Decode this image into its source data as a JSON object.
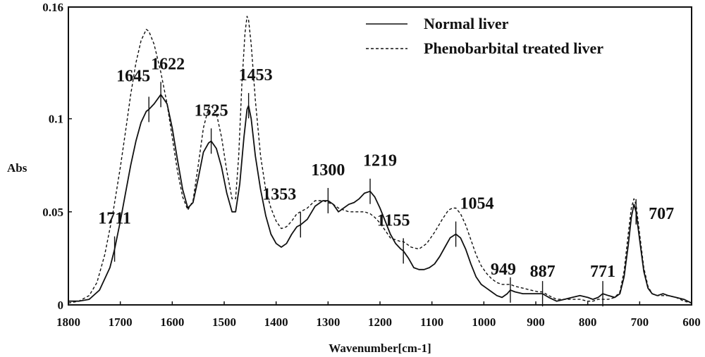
{
  "chart_data": {
    "type": "line",
    "title": "",
    "xlabel": "Wavenumber[cm-1]",
    "ylabel": "Abs",
    "xlim": [
      1800,
      600
    ],
    "ylim": [
      0,
      0.16
    ],
    "x_reversed": true,
    "x_ticks": [
      1800,
      1700,
      1600,
      1500,
      1400,
      1300,
      1200,
      1100,
      1000,
      900,
      800,
      700,
      600
    ],
    "x_tick_labels": [
      "1800",
      "1700",
      "1600",
      "1500",
      "1400",
      "1300",
      "1200",
      "1100",
      "1000",
      "900",
      "800",
      "700",
      "600"
    ],
    "y_ticks": [
      0,
      0.05,
      0.1,
      0.16
    ],
    "y_tick_labels": [
      "0",
      "0.05",
      "0.1",
      "0.16"
    ],
    "grid": false,
    "legend_position": "top-right",
    "series": [
      {
        "name": "Normal liver",
        "style": "solid",
        "color": "#111111",
        "points": [
          [
            1800,
            0.002
          ],
          [
            1780,
            0.002
          ],
          [
            1760,
            0.003
          ],
          [
            1740,
            0.008
          ],
          [
            1720,
            0.02
          ],
          [
            1711,
            0.03
          ],
          [
            1700,
            0.045
          ],
          [
            1690,
            0.06
          ],
          [
            1680,
            0.075
          ],
          [
            1670,
            0.088
          ],
          [
            1660,
            0.098
          ],
          [
            1650,
            0.104
          ],
          [
            1645,
            0.105
          ],
          [
            1635,
            0.108
          ],
          [
            1622,
            0.113
          ],
          [
            1610,
            0.108
          ],
          [
            1600,
            0.095
          ],
          [
            1590,
            0.078
          ],
          [
            1580,
            0.062
          ],
          [
            1570,
            0.052
          ],
          [
            1560,
            0.055
          ],
          [
            1550,
            0.068
          ],
          [
            1540,
            0.082
          ],
          [
            1530,
            0.087
          ],
          [
            1525,
            0.088
          ],
          [
            1515,
            0.084
          ],
          [
            1505,
            0.074
          ],
          [
            1495,
            0.06
          ],
          [
            1485,
            0.05
          ],
          [
            1478,
            0.05
          ],
          [
            1470,
            0.065
          ],
          [
            1462,
            0.09
          ],
          [
            1456,
            0.105
          ],
          [
            1453,
            0.107
          ],
          [
            1448,
            0.1
          ],
          [
            1440,
            0.08
          ],
          [
            1430,
            0.062
          ],
          [
            1420,
            0.048
          ],
          [
            1410,
            0.038
          ],
          [
            1400,
            0.033
          ],
          [
            1390,
            0.031
          ],
          [
            1380,
            0.033
          ],
          [
            1370,
            0.038
          ],
          [
            1360,
            0.042
          ],
          [
            1353,
            0.043
          ],
          [
            1340,
            0.046
          ],
          [
            1325,
            0.053
          ],
          [
            1310,
            0.056
          ],
          [
            1300,
            0.056
          ],
          [
            1290,
            0.054
          ],
          [
            1280,
            0.05
          ],
          [
            1270,
            0.052
          ],
          [
            1260,
            0.054
          ],
          [
            1250,
            0.055
          ],
          [
            1240,
            0.057
          ],
          [
            1230,
            0.06
          ],
          [
            1219,
            0.061
          ],
          [
            1210,
            0.058
          ],
          [
            1200,
            0.052
          ],
          [
            1190,
            0.045
          ],
          [
            1180,
            0.038
          ],
          [
            1170,
            0.033
          ],
          [
            1160,
            0.03
          ],
          [
            1155,
            0.029
          ],
          [
            1145,
            0.025
          ],
          [
            1135,
            0.02
          ],
          [
            1125,
            0.019
          ],
          [
            1115,
            0.019
          ],
          [
            1105,
            0.02
          ],
          [
            1095,
            0.022
          ],
          [
            1085,
            0.026
          ],
          [
            1075,
            0.031
          ],
          [
            1065,
            0.036
          ],
          [
            1054,
            0.038
          ],
          [
            1045,
            0.036
          ],
          [
            1035,
            0.03
          ],
          [
            1025,
            0.022
          ],
          [
            1015,
            0.015
          ],
          [
            1005,
            0.011
          ],
          [
            995,
            0.009
          ],
          [
            985,
            0.007
          ],
          [
            975,
            0.005
          ],
          [
            965,
            0.004
          ],
          [
            955,
            0.006
          ],
          [
            949,
            0.008
          ],
          [
            940,
            0.007
          ],
          [
            925,
            0.006
          ],
          [
            910,
            0.006
          ],
          [
            895,
            0.006
          ],
          [
            887,
            0.006
          ],
          [
            875,
            0.004
          ],
          [
            860,
            0.002
          ],
          [
            845,
            0.003
          ],
          [
            830,
            0.004
          ],
          [
            815,
            0.005
          ],
          [
            800,
            0.004
          ],
          [
            790,
            0.003
          ],
          [
            780,
            0.004
          ],
          [
            771,
            0.006
          ],
          [
            760,
            0.005
          ],
          [
            748,
            0.004
          ],
          [
            738,
            0.006
          ],
          [
            730,
            0.015
          ],
          [
            722,
            0.032
          ],
          [
            716,
            0.047
          ],
          [
            711,
            0.054
          ],
          [
            707,
            0.05
          ],
          [
            700,
            0.035
          ],
          [
            692,
            0.018
          ],
          [
            684,
            0.009
          ],
          [
            676,
            0.006
          ],
          [
            666,
            0.005
          ],
          [
            655,
            0.006
          ],
          [
            645,
            0.005
          ],
          [
            630,
            0.004
          ],
          [
            615,
            0.003
          ],
          [
            600,
            0.001
          ]
        ]
      },
      {
        "name": "Phenobarbital treated liver",
        "style": "dashed",
        "color": "#111111",
        "points": [
          [
            1800,
            0.001
          ],
          [
            1780,
            0.002
          ],
          [
            1760,
            0.005
          ],
          [
            1745,
            0.012
          ],
          [
            1730,
            0.027
          ],
          [
            1715,
            0.048
          ],
          [
            1700,
            0.074
          ],
          [
            1690,
            0.093
          ],
          [
            1680,
            0.113
          ],
          [
            1670,
            0.13
          ],
          [
            1660,
            0.142
          ],
          [
            1650,
            0.148
          ],
          [
            1645,
            0.147
          ],
          [
            1635,
            0.14
          ],
          [
            1622,
            0.125
          ],
          [
            1610,
            0.108
          ],
          [
            1600,
            0.09
          ],
          [
            1590,
            0.072
          ],
          [
            1580,
            0.058
          ],
          [
            1570,
            0.051
          ],
          [
            1560,
            0.056
          ],
          [
            1550,
            0.075
          ],
          [
            1540,
            0.095
          ],
          [
            1530,
            0.106
          ],
          [
            1525,
            0.107
          ],
          [
            1515,
            0.103
          ],
          [
            1505,
            0.09
          ],
          [
            1495,
            0.072
          ],
          [
            1485,
            0.057
          ],
          [
            1478,
            0.057
          ],
          [
            1472,
            0.08
          ],
          [
            1466,
            0.118
          ],
          [
            1460,
            0.146
          ],
          [
            1456,
            0.155
          ],
          [
            1453,
            0.153
          ],
          [
            1448,
            0.14
          ],
          [
            1440,
            0.11
          ],
          [
            1430,
            0.08
          ],
          [
            1420,
            0.062
          ],
          [
            1410,
            0.052
          ],
          [
            1400,
            0.045
          ],
          [
            1390,
            0.041
          ],
          [
            1380,
            0.042
          ],
          [
            1370,
            0.045
          ],
          [
            1360,
            0.049
          ],
          [
            1353,
            0.05
          ],
          [
            1340,
            0.052
          ],
          [
            1325,
            0.056
          ],
          [
            1310,
            0.056
          ],
          [
            1300,
            0.055
          ],
          [
            1290,
            0.054
          ],
          [
            1280,
            0.052
          ],
          [
            1270,
            0.051
          ],
          [
            1260,
            0.05
          ],
          [
            1250,
            0.05
          ],
          [
            1240,
            0.05
          ],
          [
            1230,
            0.05
          ],
          [
            1219,
            0.049
          ],
          [
            1210,
            0.047
          ],
          [
            1200,
            0.044
          ],
          [
            1190,
            0.04
          ],
          [
            1180,
            0.036
          ],
          [
            1170,
            0.035
          ],
          [
            1160,
            0.034
          ],
          [
            1155,
            0.034
          ],
          [
            1140,
            0.031
          ],
          [
            1125,
            0.03
          ],
          [
            1110,
            0.033
          ],
          [
            1095,
            0.039
          ],
          [
            1080,
            0.046
          ],
          [
            1068,
            0.051
          ],
          [
            1060,
            0.052
          ],
          [
            1054,
            0.052
          ],
          [
            1045,
            0.049
          ],
          [
            1035,
            0.043
          ],
          [
            1025,
            0.035
          ],
          [
            1015,
            0.027
          ],
          [
            1005,
            0.021
          ],
          [
            995,
            0.017
          ],
          [
            985,
            0.014
          ],
          [
            975,
            0.012
          ],
          [
            965,
            0.011
          ],
          [
            955,
            0.011
          ],
          [
            949,
            0.011
          ],
          [
            940,
            0.01
          ],
          [
            925,
            0.009
          ],
          [
            910,
            0.008
          ],
          [
            895,
            0.007
          ],
          [
            887,
            0.007
          ],
          [
            875,
            0.005
          ],
          [
            860,
            0.003
          ],
          [
            845,
            0.003
          ],
          [
            830,
            0.003
          ],
          [
            815,
            0.003
          ],
          [
            800,
            0.002
          ],
          [
            790,
            0.002
          ],
          [
            780,
            0.003
          ],
          [
            771,
            0.003
          ],
          [
            760,
            0.003
          ],
          [
            748,
            0.004
          ],
          [
            738,
            0.007
          ],
          [
            730,
            0.018
          ],
          [
            722,
            0.038
          ],
          [
            716,
            0.052
          ],
          [
            711,
            0.057
          ],
          [
            707,
            0.054
          ],
          [
            700,
            0.038
          ],
          [
            692,
            0.02
          ],
          [
            684,
            0.01
          ],
          [
            676,
            0.006
          ],
          [
            666,
            0.005
          ],
          [
            655,
            0.005
          ],
          [
            645,
            0.005
          ],
          [
            630,
            0.004
          ],
          [
            615,
            0.002
          ],
          [
            600,
            0.001
          ]
        ]
      }
    ],
    "annotations": [
      {
        "label": "1711",
        "x": 1711,
        "y": 0.03
      },
      {
        "label": "1645",
        "x": 1645,
        "y": 0.105
      },
      {
        "label": "1622",
        "x": 1622,
        "y": 0.113
      },
      {
        "label": "1525",
        "x": 1525,
        "y": 0.088
      },
      {
        "label": "1453",
        "x": 1453,
        "y": 0.107
      },
      {
        "label": "1353",
        "x": 1353,
        "y": 0.043
      },
      {
        "label": "1300",
        "x": 1300,
        "y": 0.056
      },
      {
        "label": "1219",
        "x": 1219,
        "y": 0.061
      },
      {
        "label": "1155",
        "x": 1155,
        "y": 0.029
      },
      {
        "label": "1054",
        "x": 1054,
        "y": 0.038
      },
      {
        "label": "949",
        "x": 949,
        "y": 0.008
      },
      {
        "label": "887",
        "x": 887,
        "y": 0.006
      },
      {
        "label": "771",
        "x": 771,
        "y": 0.006
      },
      {
        "label": "707",
        "x": 707,
        "y": 0.05
      }
    ]
  }
}
